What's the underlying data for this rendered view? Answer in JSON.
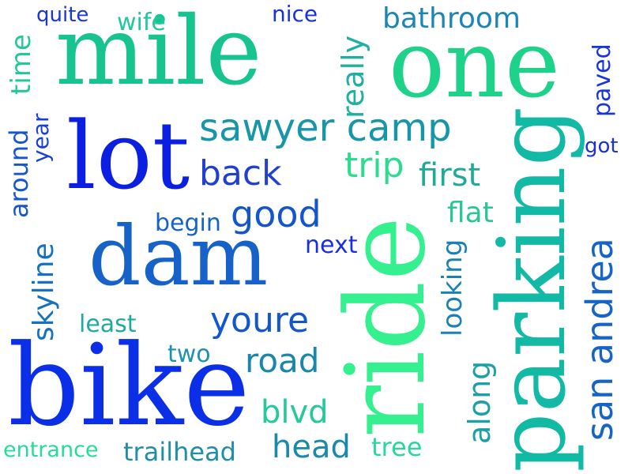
{
  "words": {
    "mile": {
      "text": "mile",
      "color": "#17c48f"
    },
    "one": {
      "text": "one",
      "color": "#1fd28a"
    },
    "lot": {
      "text": "lot",
      "color": "#0a1fe0"
    },
    "dam": {
      "text": "dam",
      "color": "#1662c8"
    },
    "bike": {
      "text": "bike",
      "color": "#0a2fe6"
    },
    "ride": {
      "text": "ride",
      "color": "#35f08e"
    },
    "parking": {
      "text": "parking",
      "color": "#12b9a4"
    },
    "sawyer_camp": {
      "text": "sawyer camp",
      "color": "#1795a9"
    },
    "san_andrea": {
      "text": "san andrea",
      "color": "#1664c8"
    },
    "youre": {
      "text": "youre",
      "color": "#1457cc"
    },
    "good": {
      "text": "good",
      "color": "#1454cc"
    },
    "back": {
      "text": "back",
      "color": "#1f40d2"
    },
    "trip": {
      "text": "trip",
      "color": "#2bdc8f"
    },
    "first": {
      "text": "first",
      "color": "#1faa97"
    },
    "flat": {
      "text": "flat",
      "color": "#29c690"
    },
    "road": {
      "text": "road",
      "color": "#1a86ac"
    },
    "head": {
      "text": "head",
      "color": "#1a8aa8"
    },
    "blvd": {
      "text": "blvd",
      "color": "#22c99b"
    },
    "tree": {
      "text": "tree",
      "color": "#26d99a"
    },
    "trailhead": {
      "text": "trailhead",
      "color": "#1f8ea6"
    },
    "entrance": {
      "text": "entrance",
      "color": "#27dc95"
    },
    "least": {
      "text": "least",
      "color": "#1faa9e"
    },
    "two": {
      "text": "two",
      "color": "#1e90b0"
    },
    "begin": {
      "text": "begin",
      "color": "#1663c8"
    },
    "next": {
      "text": "next",
      "color": "#1a2ee0"
    },
    "quite": {
      "text": "quite",
      "color": "#1a36db"
    },
    "wife": {
      "text": "wife",
      "color": "#22c79e"
    },
    "nice": {
      "text": "nice",
      "color": "#1a33d8"
    },
    "bathroom": {
      "text": "bathroom",
      "color": "#1a86b4"
    },
    "time": {
      "text": "time",
      "color": "#22c998"
    },
    "around": {
      "text": "around",
      "color": "#1556d2"
    },
    "year": {
      "text": "year",
      "color": "#1a3fd9"
    },
    "skyline": {
      "text": "skyline",
      "color": "#1672c0"
    },
    "really": {
      "text": "really",
      "color": "#1fb0a0"
    },
    "paved": {
      "text": "paved",
      "color": "#1a34dc"
    },
    "got": {
      "text": "got",
      "color": "#1a30d8"
    },
    "looking": {
      "text": "looking",
      "color": "#1a80b8"
    },
    "along": {
      "text": "along",
      "color": "#1aa0a6"
    }
  }
}
